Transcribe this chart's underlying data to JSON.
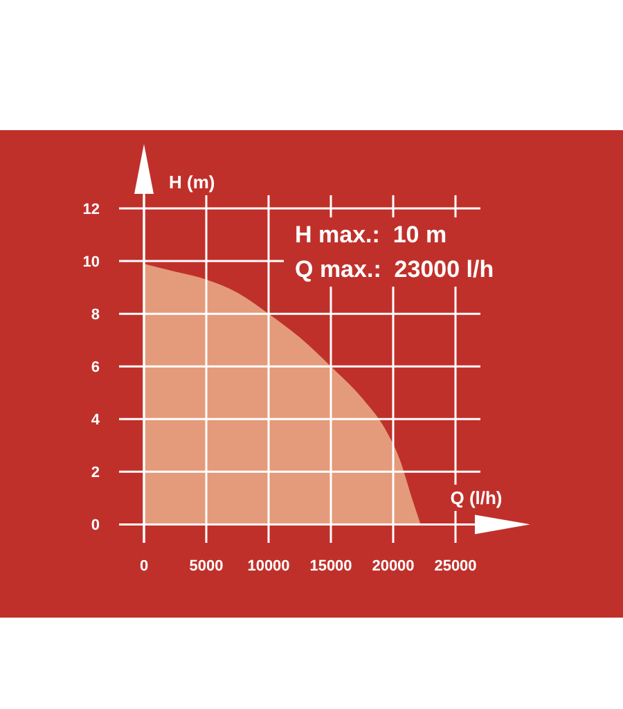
{
  "chart_data": {
    "type": "area",
    "xlabel": "Q (l/h)",
    "ylabel": "H (m)",
    "annotations": [
      "H max.:  10 m",
      "Q max.:  23000 l/h"
    ],
    "x": [
      0,
      2500,
      5000,
      7500,
      10000,
      12500,
      15000,
      17500,
      19500,
      20500,
      21500,
      22200
    ],
    "series": [
      {
        "color": "#e39b7c",
        "values": [
          9.9,
          9.6,
          9.3,
          8.8,
          8.0,
          7.1,
          6.0,
          4.8,
          3.5,
          2.5,
          1.0,
          0
        ]
      }
    ],
    "xlim": [
      -2000,
      27000
    ],
    "ylim": [
      -0.7,
      12.5
    ],
    "xticks": [
      0,
      5000,
      10000,
      15000,
      20000,
      25000
    ],
    "yticks": [
      0,
      2,
      4,
      6,
      8,
      10,
      12
    ],
    "grid": true
  }
}
